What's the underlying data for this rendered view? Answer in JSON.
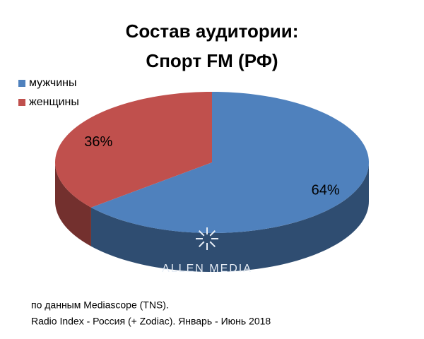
{
  "chart_data": {
    "type": "pie",
    "title": [
      "Состав аудитории:",
      "Спорт FM (РФ)"
    ],
    "categories": [
      "мужчины",
      "женщины"
    ],
    "values": [
      64,
      36
    ],
    "value_labels": [
      "64%",
      "36%"
    ],
    "colors": [
      "#4f81bd",
      "#c0504d"
    ],
    "legend": "top-left",
    "watermark": "ALLEN MEDIA",
    "notes": [
      "по данным Mediascope (TNS).",
      "Radio Index - Россия (+ Zodiac). Январь - Июнь 2018"
    ]
  }
}
